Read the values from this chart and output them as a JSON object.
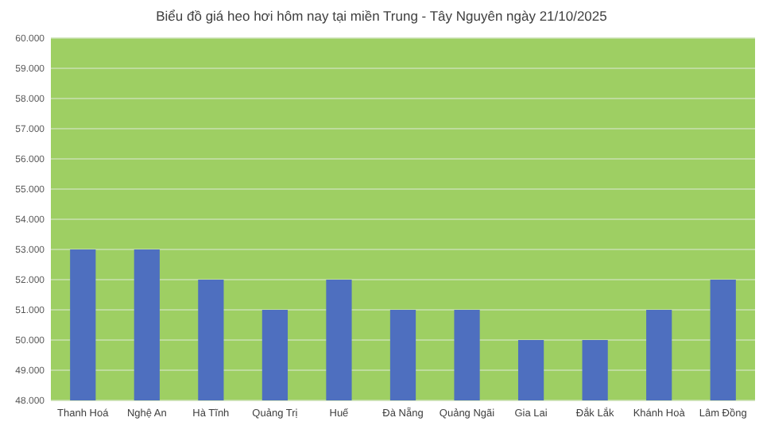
{
  "chart_data": {
    "type": "bar",
    "title": "Biểu đồ giá heo hơi hôm nay tại miền Trung - Tây Nguyên ngày 21/10/2025",
    "categories": [
      "Thanh Hoá",
      "Nghệ An",
      "Hà Tĩnh",
      "Quảng Trị",
      "Huế",
      "Đà Nẵng",
      "Quảng Ngãi",
      "Gia Lai",
      "Đắk Lắk",
      "Khánh Hoà",
      "Lâm Đồng"
    ],
    "values": [
      53000,
      53000,
      52000,
      51000,
      52000,
      51000,
      51000,
      50000,
      50000,
      51000,
      52000
    ],
    "color": "#4e6fbf",
    "ylim": [
      48000,
      60000
    ],
    "yticks": [
      {
        "value": 48000,
        "label": "48.000"
      },
      {
        "value": 49000,
        "label": "49.000"
      },
      {
        "value": 50000,
        "label": "50.000"
      },
      {
        "value": 51000,
        "label": "51.000"
      },
      {
        "value": 52000,
        "label": "52.000"
      },
      {
        "value": 53000,
        "label": "53.000"
      },
      {
        "value": 54000,
        "label": "54.000"
      },
      {
        "value": 55000,
        "label": "55.000"
      },
      {
        "value": 56000,
        "label": "56.000"
      },
      {
        "value": 57000,
        "label": "57.000"
      },
      {
        "value": 58000,
        "label": "58.000"
      },
      {
        "value": 59000,
        "label": "59.000"
      },
      {
        "value": 60000,
        "label": "60.000"
      }
    ],
    "grid": "y"
  }
}
